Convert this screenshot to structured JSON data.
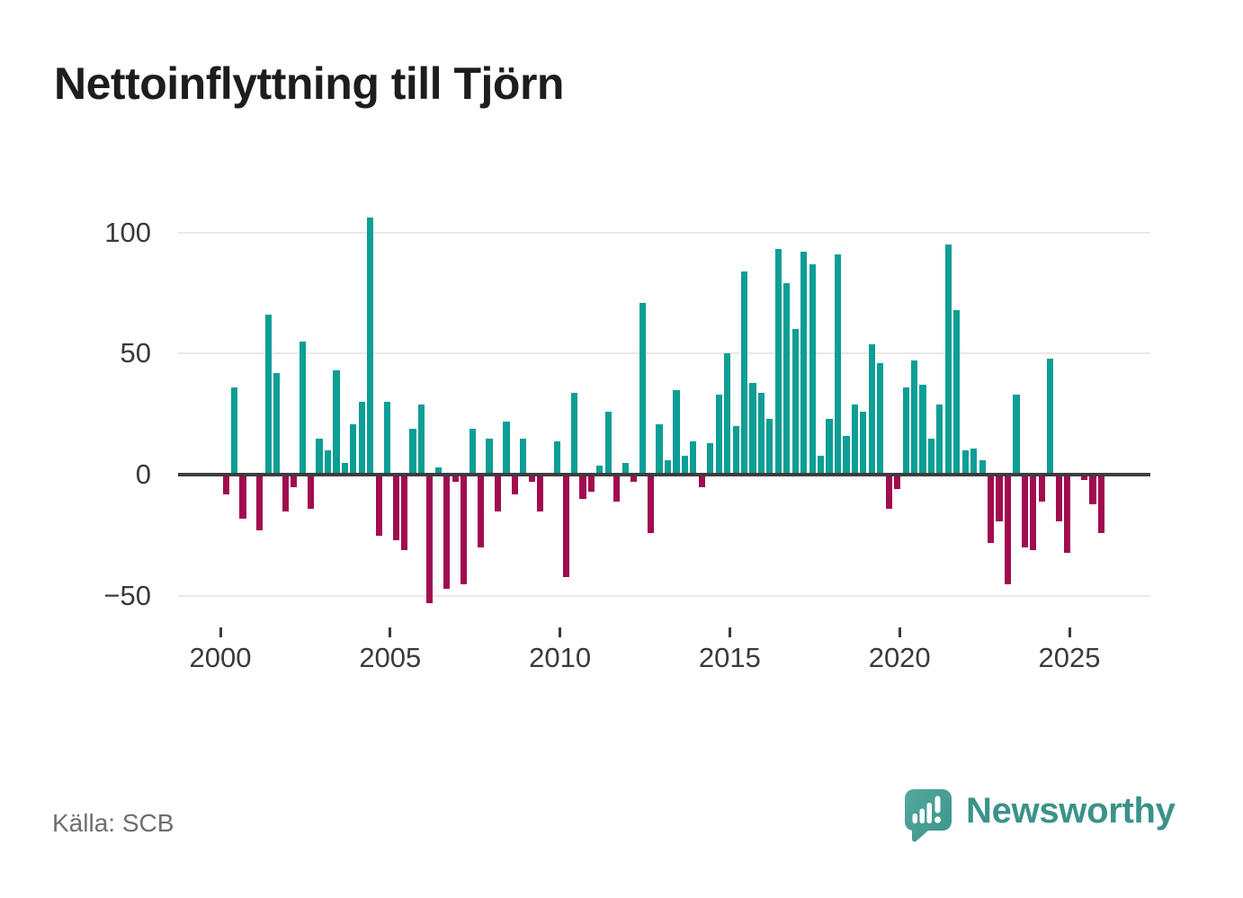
{
  "title": "Nettoinflyttning till Tjörn",
  "source": "Källa: SCB",
  "brand": {
    "name": "Newsworthy",
    "icon": "newsworthy-speech-bubble-chart-icon",
    "icon_color": "#459a91",
    "text_color": "#3b928a"
  },
  "chart_data": {
    "type": "bar",
    "title": "Nettoinflyttning till Tjörn",
    "xlabel": "",
    "ylabel": "",
    "frequency": "quarterly",
    "period_start": "2000-Q1",
    "period_end": "2025-Q4",
    "x_tick_labels": [
      "2000",
      "2005",
      "2010",
      "2015",
      "2020",
      "2025"
    ],
    "x_tick_years": [
      2000,
      2005,
      2010,
      2015,
      2020,
      2025
    ],
    "y_tick_labels": [
      "100",
      "50",
      "0",
      "−50"
    ],
    "y_ticks": [
      100,
      50,
      0,
      -50
    ],
    "ylim": [
      -62,
      112
    ],
    "grid": "horizontal",
    "legend": "none",
    "positive_color": "#0d9e95",
    "negative_color": "#a10c50",
    "values": [
      -8,
      36,
      -18,
      0,
      -23,
      66,
      42,
      -15,
      -5,
      55,
      -14,
      15,
      10,
      43,
      5,
      21,
      30,
      106,
      -25,
      30,
      -27,
      -31,
      19,
      29,
      -53,
      3,
      -47,
      -3,
      -45,
      19,
      -30,
      15,
      -15,
      22,
      -8,
      15,
      -3,
      -15,
      0,
      14,
      -42,
      34,
      -10,
      -7,
      4,
      26,
      -11,
      5,
      -3,
      71,
      -24,
      21,
      6,
      35,
      8,
      14,
      -5,
      13,
      33,
      50,
      20,
      84,
      38,
      34,
      23,
      93,
      79,
      60,
      92,
      87,
      8,
      23,
      91,
      16,
      29,
      26,
      54,
      46,
      -14,
      -6,
      36,
      47,
      37,
      15,
      29,
      95,
      68,
      10,
      11,
      6,
      -28,
      -19,
      -45,
      33,
      -30,
      -31,
      -11,
      48,
      -19,
      -32,
      1,
      -2,
      -12,
      -24
    ]
  }
}
